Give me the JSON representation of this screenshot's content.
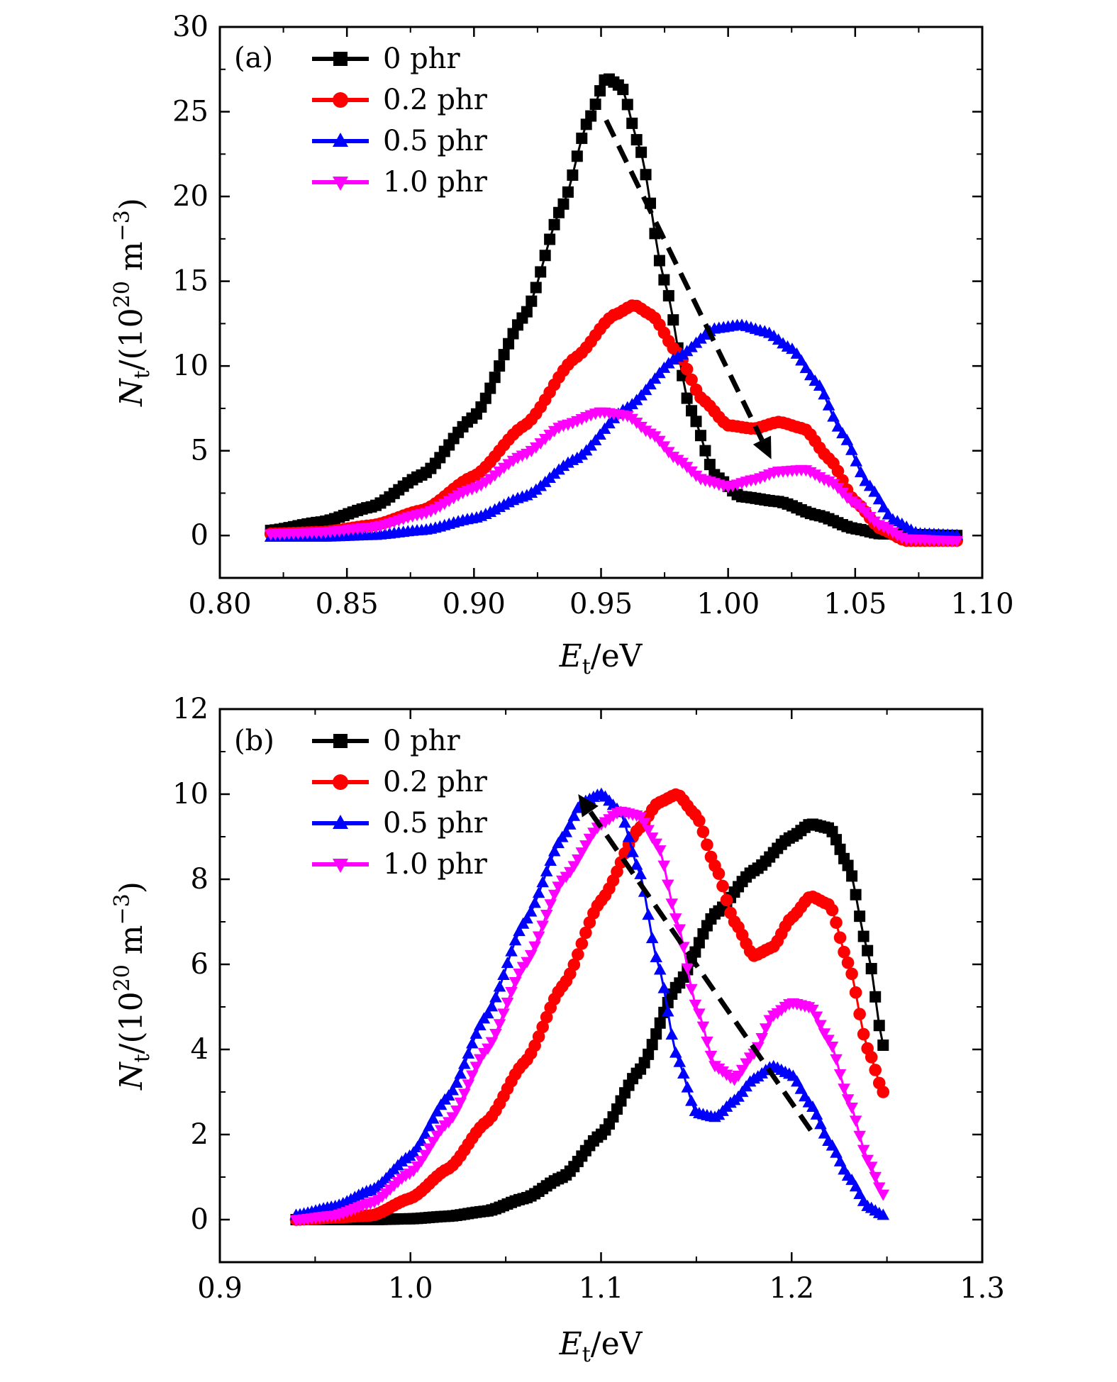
{
  "chart_data": [
    {
      "type": "line",
      "panel_label": "(a)",
      "xlabel": {
        "main": "E",
        "sub": "t",
        "rest": "/eV"
      },
      "ylabel": {
        "main": "N",
        "sub": "t",
        "rest": "/(10",
        "sup": "20",
        "rest2": " m",
        "sup2": "−3",
        "rest3": ")"
      },
      "xlim": [
        0.8,
        1.1
      ],
      "ylim": [
        -2.5,
        30
      ],
      "xticks": [
        0.8,
        0.85,
        0.9,
        0.95,
        1.0,
        1.05,
        1.1
      ],
      "xtick_labels": [
        "0.80",
        "0.85",
        "0.90",
        "0.95",
        "1.00",
        "1.05",
        "1.10"
      ],
      "yticks": [
        0,
        5,
        10,
        15,
        20,
        25,
        30
      ],
      "ytick_labels": [
        "0",
        "5",
        "10",
        "15",
        "20",
        "25",
        "30"
      ],
      "legend_position": "top-left",
      "series": [
        {
          "name": "0 phr",
          "color": "#000000",
          "marker": "square",
          "points": [
            [
              0.82,
              0.3
            ],
            [
              0.84,
              0.8
            ],
            [
              0.86,
              1.7
            ],
            [
              0.88,
              3.6
            ],
            [
              0.9,
              7.0
            ],
            [
              0.92,
              13.0
            ],
            [
              0.935,
              19.5
            ],
            [
              0.945,
              24.5
            ],
            [
              0.952,
              27.0
            ],
            [
              0.958,
              26.5
            ],
            [
              0.965,
              23.0
            ],
            [
              0.975,
              15.0
            ],
            [
              0.985,
              7.5
            ],
            [
              0.995,
              3.5
            ],
            [
              1.005,
              2.3
            ],
            [
              1.02,
              2.0
            ],
            [
              1.035,
              1.2
            ],
            [
              1.05,
              0.4
            ],
            [
              1.06,
              0.1
            ],
            [
              1.09,
              0.0
            ]
          ]
        },
        {
          "name": "0.2 phr",
          "color": "#ff0000",
          "marker": "circle",
          "points": [
            [
              0.82,
              0.1
            ],
            [
              0.84,
              0.2
            ],
            [
              0.86,
              0.6
            ],
            [
              0.88,
              1.5
            ],
            [
              0.9,
              3.5
            ],
            [
              0.92,
              6.5
            ],
            [
              0.94,
              10.5
            ],
            [
              0.955,
              13.0
            ],
            [
              0.963,
              13.6
            ],
            [
              0.97,
              13.0
            ],
            [
              0.98,
              10.8
            ],
            [
              0.99,
              8.0
            ],
            [
              1.0,
              6.5
            ],
            [
              1.01,
              6.3
            ],
            [
              1.02,
              6.7
            ],
            [
              1.03,
              6.3
            ],
            [
              1.04,
              4.5
            ],
            [
              1.05,
              2.0
            ],
            [
              1.06,
              0.4
            ],
            [
              1.07,
              -0.3
            ],
            [
              1.09,
              -0.3
            ]
          ]
        },
        {
          "name": "0.5 phr",
          "color": "#0000ff",
          "marker": "triangle-up",
          "points": [
            [
              0.82,
              -0.1
            ],
            [
              0.84,
              -0.1
            ],
            [
              0.86,
              0.0
            ],
            [
              0.88,
              0.3
            ],
            [
              0.9,
              1.0
            ],
            [
              0.92,
              2.3
            ],
            [
              0.94,
              4.5
            ],
            [
              0.96,
              7.5
            ],
            [
              0.98,
              10.5
            ],
            [
              0.995,
              12.2
            ],
            [
              1.005,
              12.4
            ],
            [
              1.015,
              12.0
            ],
            [
              1.025,
              11.0
            ],
            [
              1.035,
              9.0
            ],
            [
              1.045,
              6.0
            ],
            [
              1.055,
              3.0
            ],
            [
              1.065,
              0.9
            ],
            [
              1.075,
              0.1
            ],
            [
              1.09,
              0.0
            ]
          ]
        },
        {
          "name": "1.0 phr",
          "color": "#ff00ff",
          "marker": "triangle-down",
          "points": [
            [
              0.82,
              0.1
            ],
            [
              0.84,
              0.2
            ],
            [
              0.86,
              0.5
            ],
            [
              0.88,
              1.3
            ],
            [
              0.9,
              2.8
            ],
            [
              0.92,
              4.8
            ],
            [
              0.935,
              6.5
            ],
            [
              0.95,
              7.3
            ],
            [
              0.96,
              7.1
            ],
            [
              0.97,
              6.0
            ],
            [
              0.98,
              4.5
            ],
            [
              0.99,
              3.3
            ],
            [
              1.0,
              2.9
            ],
            [
              1.01,
              3.3
            ],
            [
              1.02,
              3.8
            ],
            [
              1.03,
              3.9
            ],
            [
              1.04,
              3.2
            ],
            [
              1.05,
              1.9
            ],
            [
              1.06,
              0.6
            ],
            [
              1.07,
              -0.2
            ],
            [
              1.09,
              -0.3
            ]
          ]
        }
      ],
      "arrow": {
        "style": "dashed",
        "color": "#000000",
        "from": [
          0.952,
          24.5
        ],
        "to": [
          1.017,
          4.5
        ]
      }
    },
    {
      "type": "line",
      "panel_label": "(b)",
      "xlabel": {
        "main": "E",
        "sub": "t",
        "rest": "/eV"
      },
      "ylabel": {
        "main": "N",
        "sub": "t",
        "rest": "/(10",
        "sup": "20",
        "rest2": " m",
        "sup2": "−3",
        "rest3": ")"
      },
      "xlim": [
        0.9,
        1.3
      ],
      "ylim": [
        -1,
        12
      ],
      "xticks": [
        0.9,
        1.0,
        1.1,
        1.2,
        1.3
      ],
      "xtick_labels": [
        "0.9",
        "1.0",
        "1.1",
        "1.2",
        "1.3"
      ],
      "yticks": [
        0,
        2,
        4,
        6,
        8,
        10,
        12
      ],
      "ytick_labels": [
        "0",
        "2",
        "4",
        "6",
        "8",
        "10",
        "12"
      ],
      "legend_position": "top-left",
      "series": [
        {
          "name": "0 phr",
          "color": "#000000",
          "marker": "square",
          "points": [
            [
              0.94,
              0.0
            ],
            [
              0.96,
              0.0
            ],
            [
              0.98,
              0.0
            ],
            [
              1.0,
              0.02
            ],
            [
              1.02,
              0.08
            ],
            [
              1.04,
              0.2
            ],
            [
              1.06,
              0.5
            ],
            [
              1.08,
              1.0
            ],
            [
              1.1,
              2.0
            ],
            [
              1.12,
              3.5
            ],
            [
              1.14,
              5.5
            ],
            [
              1.16,
              7.2
            ],
            [
              1.18,
              8.2
            ],
            [
              1.2,
              9.0
            ],
            [
              1.21,
              9.3
            ],
            [
              1.22,
              9.2
            ],
            [
              1.23,
              8.3
            ],
            [
              1.24,
              6.3
            ],
            [
              1.248,
              4.1
            ]
          ]
        },
        {
          "name": "0.2 phr",
          "color": "#ff0000",
          "marker": "circle",
          "points": [
            [
              0.94,
              0.0
            ],
            [
              0.96,
              0.05
            ],
            [
              0.98,
              0.1
            ],
            [
              1.0,
              0.5
            ],
            [
              1.02,
              1.2
            ],
            [
              1.04,
              2.3
            ],
            [
              1.06,
              3.7
            ],
            [
              1.08,
              5.5
            ],
            [
              1.1,
              7.5
            ],
            [
              1.12,
              9.2
            ],
            [
              1.13,
              9.8
            ],
            [
              1.14,
              10.0
            ],
            [
              1.15,
              9.5
            ],
            [
              1.16,
              8.3
            ],
            [
              1.17,
              7.0
            ],
            [
              1.18,
              6.2
            ],
            [
              1.19,
              6.4
            ],
            [
              1.2,
              7.1
            ],
            [
              1.21,
              7.6
            ],
            [
              1.22,
              7.4
            ],
            [
              1.23,
              6.0
            ],
            [
              1.24,
              4.0
            ],
            [
              1.248,
              3.0
            ]
          ]
        },
        {
          "name": "0.5 phr",
          "color": "#0000ff",
          "marker": "triangle-up",
          "points": [
            [
              0.94,
              0.1
            ],
            [
              0.96,
              0.3
            ],
            [
              0.98,
              0.7
            ],
            [
              1.0,
              1.5
            ],
            [
              1.02,
              2.9
            ],
            [
              1.04,
              4.8
            ],
            [
              1.06,
              7.0
            ],
            [
              1.08,
              9.0
            ],
            [
              1.09,
              9.8
            ],
            [
              1.1,
              10.0
            ],
            [
              1.11,
              9.6
            ],
            [
              1.12,
              8.2
            ],
            [
              1.13,
              6.0
            ],
            [
              1.14,
              3.8
            ],
            [
              1.15,
              2.5
            ],
            [
              1.16,
              2.4
            ],
            [
              1.17,
              2.8
            ],
            [
              1.18,
              3.3
            ],
            [
              1.19,
              3.6
            ],
            [
              1.2,
              3.4
            ],
            [
              1.21,
              2.7
            ],
            [
              1.22,
              1.8
            ],
            [
              1.23,
              1.0
            ],
            [
              1.24,
              0.3
            ],
            [
              1.248,
              0.1
            ]
          ]
        },
        {
          "name": "1.0 phr",
          "color": "#ff00ff",
          "marker": "triangle-down",
          "points": [
            [
              0.94,
              0.0
            ],
            [
              0.96,
              0.1
            ],
            [
              0.98,
              0.4
            ],
            [
              1.0,
              1.1
            ],
            [
              1.02,
              2.3
            ],
            [
              1.04,
              4.0
            ],
            [
              1.06,
              6.0
            ],
            [
              1.08,
              8.0
            ],
            [
              1.1,
              9.3
            ],
            [
              1.11,
              9.6
            ],
            [
              1.12,
              9.5
            ],
            [
              1.13,
              8.8
            ],
            [
              1.14,
              7.0
            ],
            [
              1.15,
              5.0
            ],
            [
              1.16,
              3.6
            ],
            [
              1.17,
              3.3
            ],
            [
              1.18,
              3.9
            ],
            [
              1.19,
              4.8
            ],
            [
              1.2,
              5.1
            ],
            [
              1.21,
              5.0
            ],
            [
              1.22,
              4.2
            ],
            [
              1.23,
              2.8
            ],
            [
              1.24,
              1.4
            ],
            [
              1.248,
              0.6
            ]
          ]
        }
      ],
      "arrow": {
        "style": "dashed",
        "color": "#000000",
        "from": [
          1.21,
          2.1
        ],
        "to": [
          1.088,
          10.0
        ]
      }
    }
  ]
}
